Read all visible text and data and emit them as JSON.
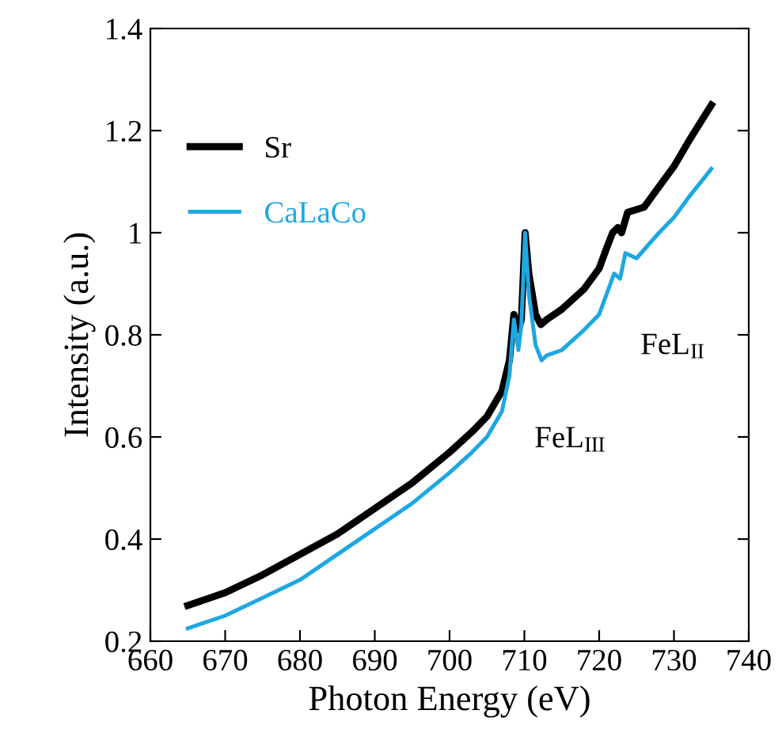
{
  "chart_data": {
    "type": "line",
    "xlabel": "Photon Energy (eV)",
    "ylabel": "Intensity (a.u.)",
    "xlim": [
      660,
      740
    ],
    "xticks": [
      660,
      670,
      680,
      690,
      700,
      710,
      720,
      730,
      740
    ],
    "ylim": [
      0.2,
      1.4
    ],
    "yticks": [
      0.2,
      0.4,
      0.6,
      0.8,
      1,
      1.2,
      1.4
    ],
    "grid": false,
    "legend": "top left",
    "marker": "none",
    "line_style": "solid",
    "series": [
      {
        "name": "Sr",
        "color": "#000000",
        "x": [
          665,
          670,
          675,
          680,
          685,
          690,
          695,
          700,
          703,
          705,
          707,
          708,
          708.6,
          709.2,
          709.6,
          710.1,
          710.6,
          711.5,
          712.2,
          713,
          715,
          718,
          720,
          721,
          721.8,
          722.5,
          723,
          723.8,
          726,
          728,
          730,
          732,
          735
        ],
        "values": [
          0.27,
          0.295,
          0.33,
          0.37,
          0.41,
          0.46,
          0.51,
          0.57,
          0.61,
          0.64,
          0.69,
          0.75,
          0.84,
          0.81,
          0.83,
          1.0,
          0.92,
          0.84,
          0.82,
          0.83,
          0.85,
          0.89,
          0.93,
          0.97,
          1.0,
          1.01,
          1.0,
          1.04,
          1.05,
          1.09,
          1.13,
          1.18,
          1.25
        ]
      },
      {
        "name": "CaLaCo",
        "color": "#1ea7e1",
        "x": [
          665,
          670,
          675,
          680,
          685,
          690,
          695,
          700,
          703,
          705,
          707,
          708,
          708.6,
          709.2,
          709.6,
          710.1,
          710.6,
          711.5,
          712.3,
          713,
          715,
          718,
          720,
          721.5,
          722,
          722.8,
          723.5,
          725,
          728,
          730,
          732,
          735
        ],
        "values": [
          0.225,
          0.25,
          0.285,
          0.32,
          0.37,
          0.42,
          0.47,
          0.53,
          0.57,
          0.6,
          0.65,
          0.72,
          0.83,
          0.77,
          0.82,
          1.0,
          0.88,
          0.78,
          0.75,
          0.76,
          0.77,
          0.81,
          0.84,
          0.9,
          0.92,
          0.91,
          0.96,
          0.95,
          1.0,
          1.03,
          1.07,
          1.125
        ]
      }
    ],
    "annotations": [
      {
        "text": "FeL$_{III}$",
        "x": 709,
        "y": 0.7
      },
      {
        "text": "FeL$_{II}$",
        "x": 722,
        "y": 0.9
      }
    ]
  }
}
